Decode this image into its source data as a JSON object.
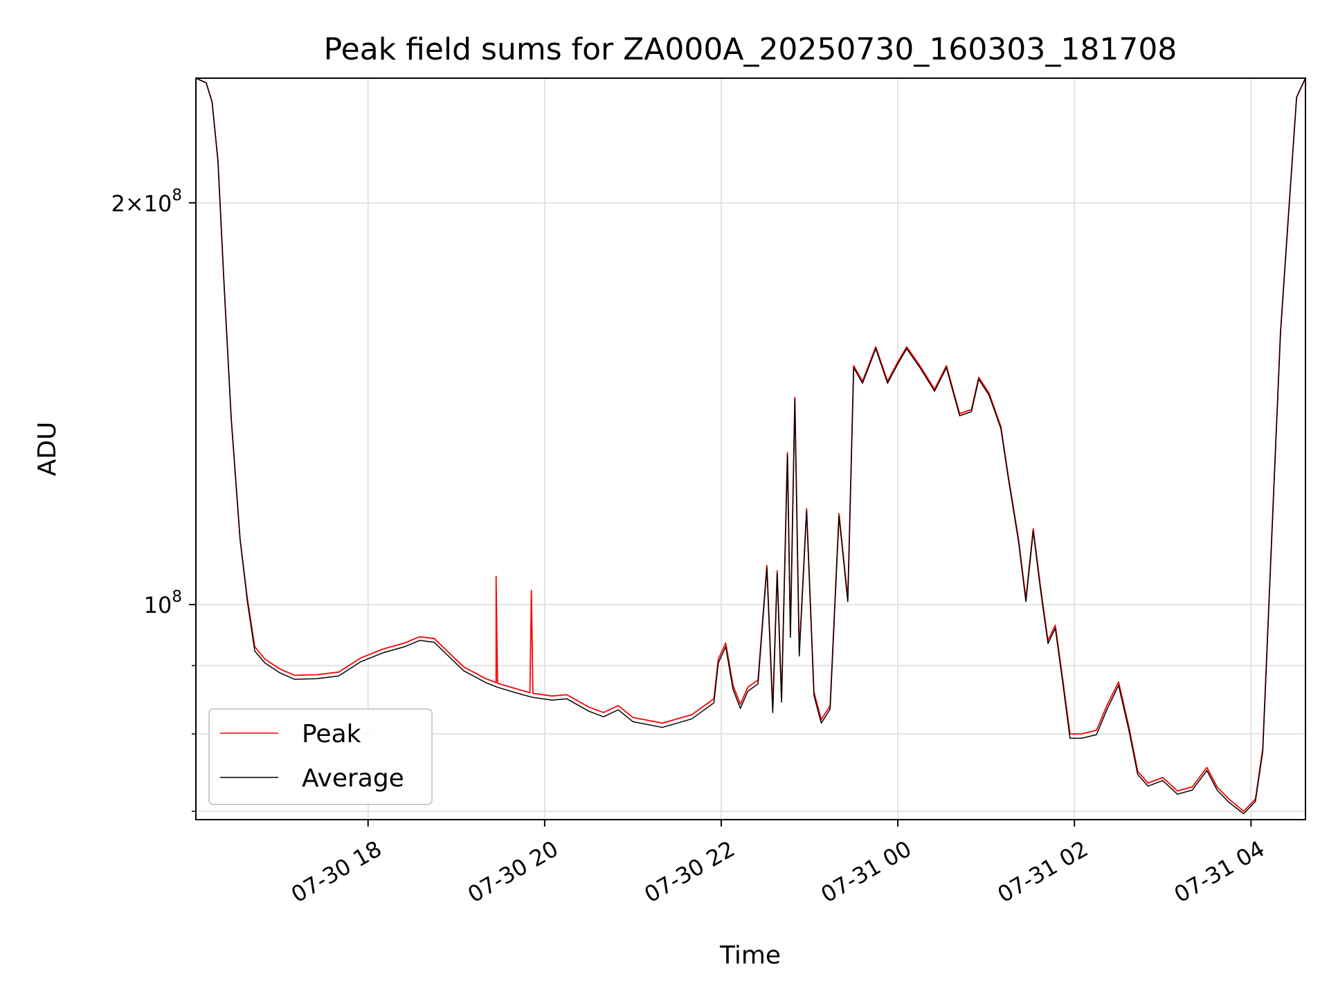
{
  "chart_data": {
    "type": "line",
    "title": "Peak field sums for ZA000A_20250730_160303_181708",
    "xlabel": "Time",
    "ylabel": "ADU",
    "yscale": "log",
    "xlim": [
      "2025-07-30 16:03",
      "2025-07-31 04:37"
    ],
    "ylim": [
      69000000,
      248000000
    ],
    "grid": true,
    "legend": "lower-left",
    "x_ticks": [
      {
        "t": "2025-07-30 18:00",
        "label": "07-30 18"
      },
      {
        "t": "2025-07-30 20:00",
        "label": "07-30 20"
      },
      {
        "t": "2025-07-30 22:00",
        "label": "07-30 22"
      },
      {
        "t": "2025-07-31 00:00",
        "label": "07-31 00"
      },
      {
        "t": "2025-07-31 02:00",
        "label": "07-31 02"
      },
      {
        "t": "2025-07-31 04:00",
        "label": "07-31 04"
      }
    ],
    "y_ticks": [
      {
        "value": 200000000,
        "mant": "2",
        "base": "10",
        "exp": "8",
        "major": true
      },
      {
        "value": 100000000,
        "mant": "",
        "base": "10",
        "exp": "8",
        "major": true
      },
      {
        "value": 90000000,
        "major": false
      },
      {
        "value": 80000000,
        "major": false
      },
      {
        "value": 70000000,
        "major": false
      }
    ],
    "series": [
      {
        "name": "Peak",
        "color": "#ff0000",
        "points": [
          [
            "2025-07-30 16:03",
            248000000
          ],
          [
            "2025-07-30 16:10",
            246000000
          ],
          [
            "2025-07-30 16:14",
            238000000
          ],
          [
            "2025-07-30 16:18",
            215000000
          ],
          [
            "2025-07-30 16:22",
            175000000
          ],
          [
            "2025-07-30 16:27",
            138000000
          ],
          [
            "2025-07-30 16:33",
            112000000
          ],
          [
            "2025-07-30 16:38",
            101000000
          ],
          [
            "2025-07-30 16:43",
            93000000
          ],
          [
            "2025-07-30 16:50",
            91000000
          ],
          [
            "2025-07-30 17:00",
            89500000
          ],
          [
            "2025-07-30 17:10",
            88500000
          ],
          [
            "2025-07-30 17:25",
            88600000
          ],
          [
            "2025-07-30 17:40",
            89000000
          ],
          [
            "2025-07-30 17:55",
            91200000
          ],
          [
            "2025-07-30 18:10",
            92600000
          ],
          [
            "2025-07-30 18:25",
            93600000
          ],
          [
            "2025-07-30 18:35",
            94600000
          ],
          [
            "2025-07-30 18:45",
            94300000
          ],
          [
            "2025-07-30 18:55",
            92000000
          ],
          [
            "2025-07-30 19:05",
            89800000
          ],
          [
            "2025-07-30 19:20",
            88000000
          ],
          [
            "2025-07-30 19:27",
            87400000
          ],
          [
            "2025-07-30 19:27",
            105000000
          ],
          [
            "2025-07-30 19:28",
            87300000
          ],
          [
            "2025-07-30 19:45",
            86200000
          ],
          [
            "2025-07-30 19:50",
            85900000
          ],
          [
            "2025-07-30 19:51",
            102500000
          ],
          [
            "2025-07-30 19:52",
            85800000
          ],
          [
            "2025-07-30 20:05",
            85400000
          ],
          [
            "2025-07-30 20:15",
            85600000
          ],
          [
            "2025-07-30 20:30",
            83800000
          ],
          [
            "2025-07-30 20:40",
            83000000
          ],
          [
            "2025-07-30 20:50",
            84000000
          ],
          [
            "2025-07-30 21:00",
            82300000
          ],
          [
            "2025-07-30 21:20",
            81500000
          ],
          [
            "2025-07-30 21:40",
            82700000
          ],
          [
            "2025-07-30 21:55",
            85000000
          ],
          [
            "2025-07-30 21:58",
            91000000
          ],
          [
            "2025-07-30 22:03",
            93600000
          ],
          [
            "2025-07-30 22:08",
            87000000
          ],
          [
            "2025-07-30 22:13",
            84200000
          ],
          [
            "2025-07-30 22:18",
            86700000
          ],
          [
            "2025-07-30 22:25",
            87800000
          ],
          [
            "2025-07-30 22:31",
            107000000
          ],
          [
            "2025-07-30 22:35",
            83500000
          ],
          [
            "2025-07-30 22:38",
            106000000
          ],
          [
            "2025-07-30 22:41",
            85000000
          ],
          [
            "2025-07-30 22:45",
            130000000
          ],
          [
            "2025-07-30 22:47",
            95000000
          ],
          [
            "2025-07-30 22:50",
            143000000
          ],
          [
            "2025-07-30 22:53",
            92000000
          ],
          [
            "2025-07-30 22:58",
            118000000
          ],
          [
            "2025-07-30 23:03",
            86000000
          ],
          [
            "2025-07-30 23:08",
            82000000
          ],
          [
            "2025-07-30 23:14",
            84000000
          ],
          [
            "2025-07-30 23:20",
            117000000
          ],
          [
            "2025-07-30 23:26",
            101000000
          ],
          [
            "2025-07-30 23:30",
            151000000
          ],
          [
            "2025-07-30 23:36",
            147000000
          ],
          [
            "2025-07-30 23:45",
            156000000
          ],
          [
            "2025-07-30 23:53",
            147000000
          ],
          [
            "2025-07-31 00:00",
            152000000
          ],
          [
            "2025-07-31 00:06",
            156000000
          ],
          [
            "2025-07-31 00:15",
            151000000
          ],
          [
            "2025-07-31 00:25",
            145000000
          ],
          [
            "2025-07-31 00:33",
            151000000
          ],
          [
            "2025-07-31 00:42",
            139000000
          ],
          [
            "2025-07-31 00:50",
            140000000
          ],
          [
            "2025-07-31 00:55",
            148000000
          ],
          [
            "2025-07-31 01:02",
            144000000
          ],
          [
            "2025-07-31 01:10",
            136000000
          ],
          [
            "2025-07-31 01:15",
            125000000
          ],
          [
            "2025-07-31 01:22",
            112000000
          ],
          [
            "2025-07-31 01:27",
            101000000
          ],
          [
            "2025-07-31 01:32",
            114000000
          ],
          [
            "2025-07-31 01:37",
            103000000
          ],
          [
            "2025-07-31 01:42",
            94000000
          ],
          [
            "2025-07-31 01:47",
            96500000
          ],
          [
            "2025-07-31 01:52",
            88000000
          ],
          [
            "2025-07-31 01:57",
            80000000
          ],
          [
            "2025-07-31 02:05",
            80000000
          ],
          [
            "2025-07-31 02:15",
            80500000
          ],
          [
            "2025-07-31 02:22",
            84000000
          ],
          [
            "2025-07-31 02:30",
            87500000
          ],
          [
            "2025-07-31 02:37",
            81000000
          ],
          [
            "2025-07-31 02:43",
            75000000
          ],
          [
            "2025-07-31 02:50",
            73500000
          ],
          [
            "2025-07-31 03:00",
            74200000
          ],
          [
            "2025-07-31 03:10",
            72500000
          ],
          [
            "2025-07-31 03:20",
            73000000
          ],
          [
            "2025-07-31 03:30",
            75500000
          ],
          [
            "2025-07-31 03:37",
            73000000
          ],
          [
            "2025-07-31 03:45",
            71500000
          ],
          [
            "2025-07-31 03:55",
            70000000
          ],
          [
            "2025-07-31 04:03",
            71500000
          ],
          [
            "2025-07-31 04:08",
            78000000
          ],
          [
            "2025-07-31 04:14",
            112000000
          ],
          [
            "2025-07-31 04:20",
            160000000
          ],
          [
            "2025-07-31 04:26",
            200000000
          ],
          [
            "2025-07-31 04:31",
            240000000
          ],
          [
            "2025-07-31 04:37",
            248000000
          ]
        ]
      },
      {
        "name": "Average",
        "color": "#000000",
        "points": [
          [
            "2025-07-30 16:03",
            248000000
          ],
          [
            "2025-07-30 16:10",
            246000000
          ],
          [
            "2025-07-30 16:14",
            238000000
          ],
          [
            "2025-07-30 16:18",
            215000000
          ],
          [
            "2025-07-30 16:22",
            175000000
          ],
          [
            "2025-07-30 16:27",
            138000000
          ],
          [
            "2025-07-30 16:33",
            112000000
          ],
          [
            "2025-07-30 16:38",
            100500000
          ],
          [
            "2025-07-30 16:43",
            92300000
          ],
          [
            "2025-07-30 16:50",
            90400000
          ],
          [
            "2025-07-30 17:00",
            88900000
          ],
          [
            "2025-07-30 17:10",
            87900000
          ],
          [
            "2025-07-30 17:25",
            88000000
          ],
          [
            "2025-07-30 17:40",
            88400000
          ],
          [
            "2025-07-30 17:55",
            90600000
          ],
          [
            "2025-07-30 18:10",
            92000000
          ],
          [
            "2025-07-30 18:25",
            93000000
          ],
          [
            "2025-07-30 18:35",
            94000000
          ],
          [
            "2025-07-30 18:45",
            93700000
          ],
          [
            "2025-07-30 18:55",
            91400000
          ],
          [
            "2025-07-30 19:05",
            89200000
          ],
          [
            "2025-07-30 19:20",
            87400000
          ],
          [
            "2025-07-30 19:28",
            86700000
          ],
          [
            "2025-07-30 19:45",
            85600000
          ],
          [
            "2025-07-30 19:52",
            85200000
          ],
          [
            "2025-07-30 20:05",
            84800000
          ],
          [
            "2025-07-30 20:15",
            85000000
          ],
          [
            "2025-07-30 20:30",
            83200000
          ],
          [
            "2025-07-30 20:40",
            82400000
          ],
          [
            "2025-07-30 20:50",
            83400000
          ],
          [
            "2025-07-30 21:00",
            81700000
          ],
          [
            "2025-07-30 21:20",
            80900000
          ],
          [
            "2025-07-30 21:40",
            82100000
          ],
          [
            "2025-07-30 21:55",
            84400000
          ],
          [
            "2025-07-30 21:58",
            90400000
          ],
          [
            "2025-07-30 22:03",
            93000000
          ],
          [
            "2025-07-30 22:08",
            86400000
          ],
          [
            "2025-07-30 22:13",
            83600000
          ],
          [
            "2025-07-30 22:18",
            86100000
          ],
          [
            "2025-07-30 22:25",
            87200000
          ],
          [
            "2025-07-30 22:31",
            106500000
          ],
          [
            "2025-07-30 22:35",
            83000000
          ],
          [
            "2025-07-30 22:38",
            105500000
          ],
          [
            "2025-07-30 22:41",
            84500000
          ],
          [
            "2025-07-30 22:45",
            129500000
          ],
          [
            "2025-07-30 22:47",
            94500000
          ],
          [
            "2025-07-30 22:50",
            142500000
          ],
          [
            "2025-07-30 22:53",
            91500000
          ],
          [
            "2025-07-30 22:58",
            117500000
          ],
          [
            "2025-07-30 23:03",
            85500000
          ],
          [
            "2025-07-30 23:08",
            81500000
          ],
          [
            "2025-07-30 23:14",
            83500000
          ],
          [
            "2025-07-30 23:20",
            116500000
          ],
          [
            "2025-07-30 23:26",
            100500000
          ],
          [
            "2025-07-30 23:30",
            150500000
          ],
          [
            "2025-07-30 23:36",
            146500000
          ],
          [
            "2025-07-30 23:45",
            155500000
          ],
          [
            "2025-07-30 23:53",
            146500000
          ],
          [
            "2025-07-31 00:00",
            151500000
          ],
          [
            "2025-07-31 00:06",
            155500000
          ],
          [
            "2025-07-31 00:15",
            150500000
          ],
          [
            "2025-07-31 00:25",
            144500000
          ],
          [
            "2025-07-31 00:33",
            150500000
          ],
          [
            "2025-07-31 00:42",
            138500000
          ],
          [
            "2025-07-31 00:50",
            139500000
          ],
          [
            "2025-07-31 00:55",
            147500000
          ],
          [
            "2025-07-31 01:02",
            143500000
          ],
          [
            "2025-07-31 01:10",
            135500000
          ],
          [
            "2025-07-31 01:15",
            124500000
          ],
          [
            "2025-07-31 01:22",
            111500000
          ],
          [
            "2025-07-31 01:27",
            100500000
          ],
          [
            "2025-07-31 01:32",
            113500000
          ],
          [
            "2025-07-31 01:37",
            102500000
          ],
          [
            "2025-07-31 01:42",
            93500000
          ],
          [
            "2025-07-31 01:47",
            96000000
          ],
          [
            "2025-07-31 01:52",
            87500000
          ],
          [
            "2025-07-31 01:57",
            79400000
          ],
          [
            "2025-07-31 02:05",
            79400000
          ],
          [
            "2025-07-31 02:15",
            79900000
          ],
          [
            "2025-07-31 02:22",
            83400000
          ],
          [
            "2025-07-31 02:30",
            87000000
          ],
          [
            "2025-07-31 02:37",
            80500000
          ],
          [
            "2025-07-31 02:43",
            74600000
          ],
          [
            "2025-07-31 02:50",
            73100000
          ],
          [
            "2025-07-31 03:00",
            73800000
          ],
          [
            "2025-07-31 03:10",
            72100000
          ],
          [
            "2025-07-31 03:20",
            72600000
          ],
          [
            "2025-07-31 03:30",
            75100000
          ],
          [
            "2025-07-31 03:37",
            72600000
          ],
          [
            "2025-07-31 03:45",
            71100000
          ],
          [
            "2025-07-31 03:55",
            69700000
          ],
          [
            "2025-07-31 04:03",
            71200000
          ],
          [
            "2025-07-31 04:08",
            77600000
          ],
          [
            "2025-07-31 04:14",
            111500000
          ],
          [
            "2025-07-31 04:20",
            159500000
          ],
          [
            "2025-07-31 04:26",
            199500000
          ],
          [
            "2025-07-31 04:31",
            240000000
          ],
          [
            "2025-07-31 04:37",
            248000000
          ]
        ]
      }
    ]
  }
}
